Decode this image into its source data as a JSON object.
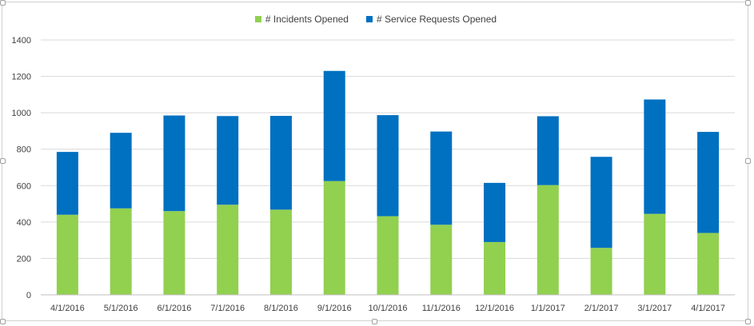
{
  "chart_data": {
    "type": "bar",
    "stacked": true,
    "categories": [
      "4/1/2016",
      "5/1/2016",
      "6/1/2016",
      "7/1/2016",
      "8/1/2016",
      "9/1/2016",
      "10/1/2016",
      "11/1/2016",
      "12/1/2016",
      "1/1/2017",
      "2/1/2017",
      "3/1/2017",
      "4/1/2017"
    ],
    "series": [
      {
        "name": "# Incidents Opened",
        "color": "#92d050",
        "values": [
          440,
          475,
          460,
          495,
          468,
          625,
          432,
          385,
          290,
          603,
          258,
          445,
          340
        ]
      },
      {
        "name": "# Service Requests Opened",
        "color": "#0070c0",
        "values": [
          345,
          415,
          525,
          487,
          515,
          605,
          555,
          512,
          325,
          378,
          500,
          628,
          555
        ]
      }
    ],
    "ylim": [
      0,
      1400
    ],
    "yticks": [
      0,
      200,
      400,
      600,
      800,
      1000,
      1200,
      1400
    ],
    "grid": true,
    "legend": "top-center",
    "title": "",
    "xlabel": "",
    "ylabel": ""
  }
}
